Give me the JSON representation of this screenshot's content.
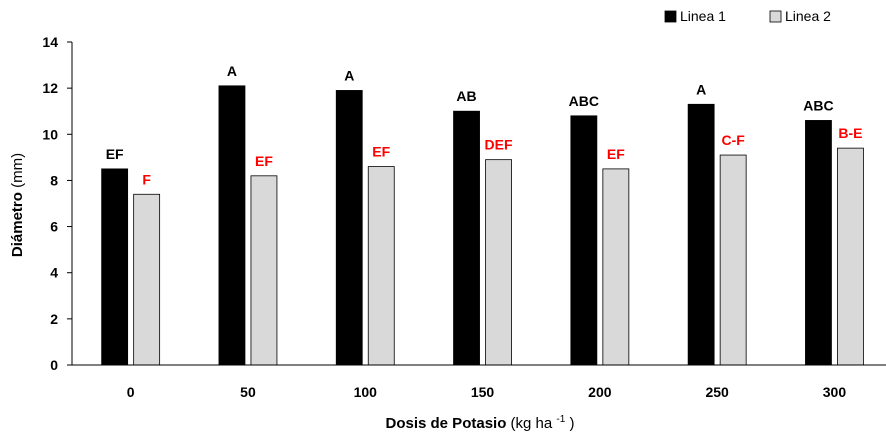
{
  "chart_data": {
    "type": "bar",
    "categories": [
      "0",
      "50",
      "100",
      "150",
      "200",
      "250",
      "300"
    ],
    "series": [
      {
        "name": "Linea 1",
        "color": "#000000",
        "label_color": "#000000",
        "values": [
          8.5,
          12.1,
          11.9,
          11.0,
          10.8,
          11.3,
          10.6
        ],
        "labels": [
          "EF",
          "A",
          "A",
          "AB",
          "ABC",
          "A",
          "ABC"
        ]
      },
      {
        "name": "Linea 2",
        "color": "#d9d9d9",
        "label_color": "#ff0000",
        "values": [
          7.4,
          8.2,
          8.6,
          8.9,
          8.5,
          9.1,
          9.4
        ],
        "labels": [
          "F",
          "EF",
          "EF",
          "DEF",
          "EF",
          "C-F",
          "B-E"
        ]
      }
    ],
    "ylim": [
      0,
      14
    ],
    "yticks": [
      0,
      2,
      4,
      6,
      8,
      10,
      12,
      14
    ],
    "ylabel_bold": "Diámetro",
    "ylabel_normal": "(mm)",
    "xlabel_bold": "Dosis de Potasio",
    "xlabel_normal": "(kg ha",
    "xlabel_sup": "-1",
    "xlabel_close": ")",
    "grid": false,
    "legend_position": "top-right"
  }
}
